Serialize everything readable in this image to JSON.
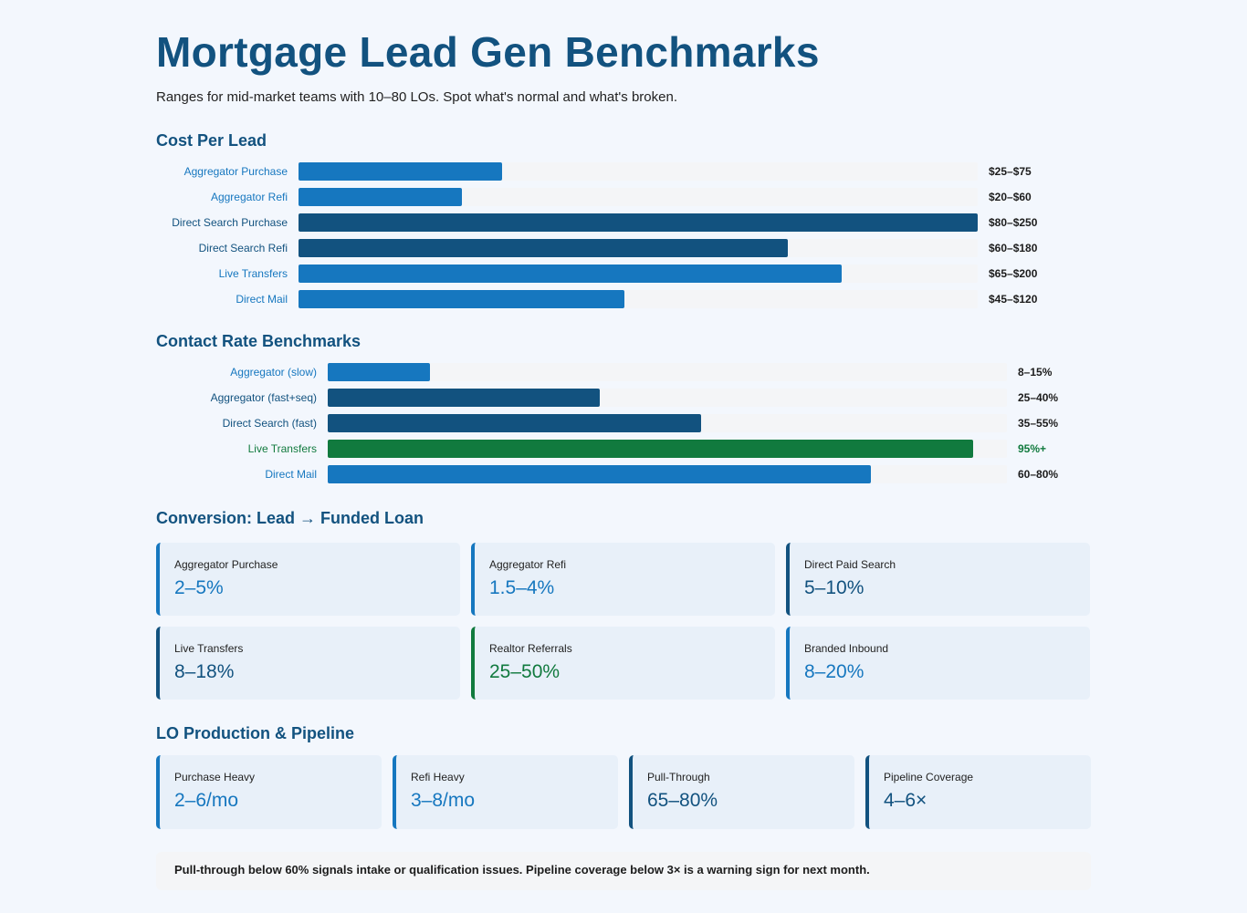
{
  "header": {
    "title": "Mortgage Lead Gen Benchmarks",
    "subtitle": "Ranges for mid-market teams with 10–80 LOs. Spot what's normal and what's broken."
  },
  "sections": {
    "cpl_title": "Cost Per Lead",
    "contact_title": "Contact Rate Benchmarks",
    "conversion_title": "Conversion: Lead → Funded Loan",
    "lo_title": "LO Production & Pipeline"
  },
  "colors": {
    "light_blue": "#1677bf",
    "dark_blue": "#12527f",
    "green": "#117a3e"
  },
  "chart_data": [
    {
      "type": "bar",
      "title": "Cost Per Lead",
      "orientation": "horizontal",
      "categories": [
        "Aggregator Purchase",
        "Aggregator Refi",
        "Direct Search Purchase",
        "Direct Search Refi",
        "Live Transfers",
        "Direct Mail"
      ],
      "values": [
        75,
        60,
        250,
        180,
        200,
        120
      ],
      "value_labels": [
        "$25–$75",
        "$20–$60",
        "$80–$250",
        "$60–$180",
        "$65–$200",
        "$45–$120"
      ],
      "bar_colors": [
        "#1677bf",
        "#1677bf",
        "#12527f",
        "#12527f",
        "#1677bf",
        "#1677bf"
      ],
      "xlim": [
        0,
        250
      ],
      "grid": false
    },
    {
      "type": "bar",
      "title": "Contact Rate Benchmarks",
      "orientation": "horizontal",
      "categories": [
        "Aggregator (slow)",
        "Aggregator (fast+seq)",
        "Direct Search (fast)",
        "Live Transfers",
        "Direct Mail"
      ],
      "values": [
        15,
        40,
        55,
        95,
        80
      ],
      "value_labels": [
        "8–15%",
        "25–40%",
        "35–55%",
        "95%+",
        "60–80%"
      ],
      "bar_colors": [
        "#1677bf",
        "#12527f",
        "#12527f",
        "#117a3e",
        "#1677bf"
      ],
      "xlim": [
        0,
        100
      ],
      "grid": false
    }
  ],
  "conversion_cards": [
    {
      "label": "Aggregator Purchase",
      "value": "2–5%",
      "color": "#1677bf"
    },
    {
      "label": "Aggregator Refi",
      "value": "1.5–4%",
      "color": "#1677bf"
    },
    {
      "label": "Direct Paid Search",
      "value": "5–10%",
      "color": "#12527f"
    },
    {
      "label": "Live Transfers",
      "value": "8–18%",
      "color": "#12527f"
    },
    {
      "label": "Realtor Referrals",
      "value": "25–50%",
      "color": "#117a3e"
    },
    {
      "label": "Branded Inbound",
      "value": "8–20%",
      "color": "#1677bf"
    }
  ],
  "lo_cards": [
    {
      "label": "Purchase Heavy",
      "value": "2–6/mo",
      "color": "#1677bf"
    },
    {
      "label": "Refi Heavy",
      "value": "3–8/mo",
      "color": "#1677bf"
    },
    {
      "label": "Pull-Through",
      "value": "65–80%",
      "color": "#12527f"
    },
    {
      "label": "Pipeline Coverage",
      "value": "4–6×",
      "color": "#12527f"
    }
  ],
  "note": "Pull-through below 60% signals intake or qualification issues. Pipeline coverage below 3× is a warning sign for next month."
}
